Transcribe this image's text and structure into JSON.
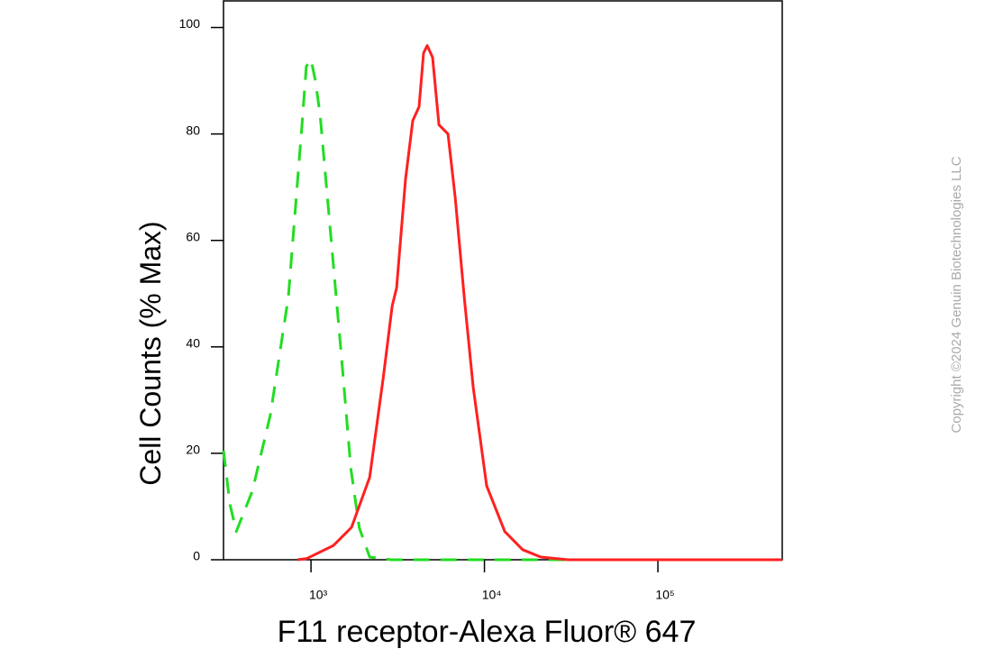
{
  "chart_data": {
    "type": "line",
    "xlabel": "F11 receptor-Alexa Fluor® 647",
    "ylabel": "Cell Counts (% Max)",
    "annotation": "Copyright ©2024 Genuin Biotechnologies LLC",
    "xscale": "log",
    "xlim": [
      313,
      521000
    ],
    "xticks": [
      {
        "value": 1000,
        "label": "10³"
      },
      {
        "value": 10000,
        "label": "10⁴"
      },
      {
        "value": 100000,
        "label": "10⁵"
      }
    ],
    "ylim": [
      0,
      105
    ],
    "yticks": [
      0,
      20,
      40,
      60,
      80,
      100
    ],
    "series": [
      {
        "color": "#22dd22",
        "style": "dashed",
        "x": [
          313,
          341,
          371,
          459,
          584,
          741,
          887,
          940,
          1000,
          1060,
          1130,
          1300,
          1500,
          1700,
          1900,
          2180,
          2900,
          521000
        ],
        "values": [
          20.5,
          10.4,
          5.3,
          12.9,
          27.3,
          49.4,
          81.7,
          92.7,
          94,
          90,
          83.4,
          61,
          38,
          17,
          6,
          0.5,
          0,
          0
        ]
      },
      {
        "color": "#ff2020",
        "style": "solid",
        "x": [
          836,
          942,
          1348,
          1714,
          2178,
          2606,
          2938,
          3118,
          3510,
          3862,
          4200,
          4457,
          4674,
          5023,
          5466,
          6165,
          6780,
          7640,
          8610,
          10300,
          13100,
          16600,
          21100,
          30300,
          521000
        ],
        "values": [
          0,
          0.2,
          2.7,
          6.1,
          15.5,
          34.1,
          47.7,
          51.1,
          71.5,
          82.5,
          85.1,
          95.2,
          96.6,
          94.4,
          81.7,
          80,
          68.1,
          49.4,
          32.4,
          13.9,
          5.3,
          1.9,
          0.5,
          0,
          0
        ]
      }
    ]
  }
}
